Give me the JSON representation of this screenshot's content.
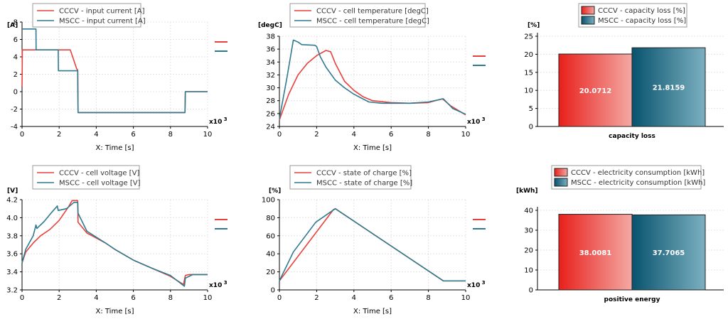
{
  "colors": {
    "cccv": "#e8403c",
    "mscc": "#2f7a8f"
  },
  "chart_data": [
    {
      "type": "line",
      "unit": "[A]",
      "xlabel": "X: Time [s]",
      "xscale": "x10 3",
      "xlim": [
        0,
        10
      ],
      "ylim": [
        -4,
        8
      ],
      "xticks": [
        "0",
        "2",
        "4",
        "6",
        "8",
        "10"
      ],
      "yticks": [
        "-4",
        "-2",
        "0",
        "2",
        "4",
        "6",
        "8"
      ],
      "series": [
        {
          "name": "CCCV - input current [A]",
          "color": "cccv",
          "points": [
            [
              0,
              0.6
            ],
            [
              0.02,
              4.8
            ],
            [
              2.6,
              4.8
            ],
            [
              2.95,
              2.6
            ],
            [
              3.0,
              2.5
            ],
            [
              3.02,
              -2.4
            ],
            [
              8.78,
              -2.4
            ],
            [
              8.8,
              0
            ],
            [
              10,
              0
            ]
          ]
        },
        {
          "name": "MSCC - input current [A]",
          "color": "mscc",
          "points": [
            [
              0,
              7.2
            ],
            [
              0.75,
              7.2
            ],
            [
              0.76,
              4.8
            ],
            [
              1.95,
              4.8
            ],
            [
              1.96,
              2.4
            ],
            [
              3.0,
              2.4
            ],
            [
              3.02,
              -2.4
            ],
            [
              8.78,
              -2.4
            ],
            [
              8.8,
              0
            ],
            [
              10,
              0
            ]
          ]
        }
      ]
    },
    {
      "type": "line",
      "unit": "[degC]",
      "xlabel": "X: Time [s]",
      "xscale": "x10 3",
      "xlim": [
        0,
        10
      ],
      "ylim": [
        24,
        38
      ],
      "xticks": [
        "0",
        "2",
        "4",
        "6",
        "8",
        "10"
      ],
      "yticks": [
        "24",
        "26",
        "28",
        "30",
        "32",
        "34",
        "36",
        "38"
      ],
      "series": [
        {
          "name": "CCCV - cell temperature [degC]",
          "color": "cccv",
          "points": [
            [
              0,
              25
            ],
            [
              0.5,
              29
            ],
            [
              1.0,
              32
            ],
            [
              1.5,
              33.8
            ],
            [
              2.0,
              35.0
            ],
            [
              2.5,
              35.8
            ],
            [
              2.75,
              35.6
            ],
            [
              3.0,
              33.8
            ],
            [
              3.5,
              31
            ],
            [
              4.0,
              29.6
            ],
            [
              4.5,
              28.6
            ],
            [
              5.0,
              28.0
            ],
            [
              6.0,
              27.7
            ],
            [
              7.0,
              27.6
            ],
            [
              8.0,
              27.7
            ],
            [
              8.75,
              28.3
            ],
            [
              9.2,
              27.2
            ],
            [
              10,
              25.8
            ]
          ]
        },
        {
          "name": "MSCC - cell temperature [degC]",
          "color": "mscc",
          "points": [
            [
              0,
              25.2
            ],
            [
              0.4,
              31.5
            ],
            [
              0.75,
              37.4
            ],
            [
              1.0,
              37.1
            ],
            [
              1.2,
              36.7
            ],
            [
              1.9,
              36.6
            ],
            [
              2.0,
              36.4
            ],
            [
              2.2,
              34.8
            ],
            [
              2.5,
              33.2
            ],
            [
              3.0,
              31.2
            ],
            [
              3.5,
              30.0
            ],
            [
              4.0,
              29.0
            ],
            [
              4.8,
              27.8
            ],
            [
              5.5,
              27.6
            ],
            [
              7.0,
              27.6
            ],
            [
              8.0,
              27.8
            ],
            [
              8.8,
              28.3
            ],
            [
              9.3,
              26.8
            ],
            [
              10,
              25.9
            ]
          ]
        }
      ]
    },
    {
      "type": "bar",
      "unit": "[%]",
      "ylim": [
        0,
        25
      ],
      "yticks": [
        "0",
        "5",
        "10",
        "15",
        "20",
        "25"
      ],
      "category": "capacity loss",
      "series": [
        {
          "name": "CCCV - capacity loss [%]",
          "color": "cccv",
          "value": 20.0712,
          "label": "20.0712"
        },
        {
          "name": "MSCC - capacity loss [%]",
          "color": "mscc",
          "value": 21.8159,
          "label": "21.8159"
        }
      ]
    },
    {
      "type": "line",
      "unit": "[V]",
      "xlabel": "X: Time [s]",
      "xscale": "x10 3",
      "xlim": [
        0,
        10
      ],
      "ylim": [
        3.2,
        4.2
      ],
      "xticks": [
        "0",
        "2",
        "4",
        "6",
        "8",
        "10"
      ],
      "yticks": [
        "3.2",
        "3.4",
        "3.6",
        "3.8",
        "4.0",
        "4.2"
      ],
      "series": [
        {
          "name": "CCCV - cell voltage [V]",
          "color": "cccv",
          "points": [
            [
              0,
              3.5
            ],
            [
              0.2,
              3.62
            ],
            [
              0.6,
              3.72
            ],
            [
              1.0,
              3.8
            ],
            [
              1.5,
              3.87
            ],
            [
              2.0,
              3.97
            ],
            [
              2.5,
              4.12
            ],
            [
              2.7,
              4.19
            ],
            [
              3.0,
              4.19
            ],
            [
              3.02,
              3.95
            ],
            [
              3.5,
              3.83
            ],
            [
              4.5,
              3.72
            ],
            [
              5.0,
              3.65
            ],
            [
              6.0,
              3.53
            ],
            [
              7.0,
              3.44
            ],
            [
              8.0,
              3.35
            ],
            [
              8.7,
              3.26
            ],
            [
              8.8,
              3.36
            ],
            [
              9.0,
              3.37
            ],
            [
              10,
              3.37
            ]
          ]
        },
        {
          "name": "MSCC - cell voltage [V]",
          "color": "mscc",
          "points": [
            [
              0,
              3.5
            ],
            [
              0.2,
              3.65
            ],
            [
              0.6,
              3.8
            ],
            [
              0.75,
              3.92
            ],
            [
              0.8,
              3.88
            ],
            [
              1.2,
              3.96
            ],
            [
              1.6,
              4.06
            ],
            [
              1.9,
              4.13
            ],
            [
              1.95,
              4.08
            ],
            [
              2.4,
              4.1
            ],
            [
              2.8,
              4.17
            ],
            [
              3.0,
              4.17
            ],
            [
              3.02,
              4.05
            ],
            [
              3.5,
              3.85
            ],
            [
              4.5,
              3.72
            ],
            [
              5.0,
              3.65
            ],
            [
              6.0,
              3.53
            ],
            [
              7.0,
              3.44
            ],
            [
              8.0,
              3.36
            ],
            [
              8.75,
              3.24
            ],
            [
              8.8,
              3.33
            ],
            [
              9.2,
              3.37
            ],
            [
              10,
              3.37
            ]
          ]
        }
      ]
    },
    {
      "type": "line",
      "unit": "[%]",
      "xlabel": "X: Time [s]",
      "xscale": "x10 3",
      "xlim": [
        0,
        10
      ],
      "ylim": [
        0,
        100
      ],
      "xticks": [
        "0",
        "2",
        "4",
        "6",
        "8",
        "10"
      ],
      "yticks": [
        "0",
        "20",
        "40",
        "60",
        "80",
        "100"
      ],
      "series": [
        {
          "name": "CCCV - state of charge [%]",
          "color": "cccv",
          "points": [
            [
              0,
              10
            ],
            [
              2.9,
              89
            ],
            [
              3.0,
              90
            ],
            [
              8.8,
              10
            ],
            [
              10,
              10
            ]
          ]
        },
        {
          "name": "MSCC - state of charge [%]",
          "color": "mscc",
          "points": [
            [
              0,
              10
            ],
            [
              0.75,
              42
            ],
            [
              1.95,
              75
            ],
            [
              3.0,
              90
            ],
            [
              8.8,
              10
            ],
            [
              10,
              10
            ]
          ]
        }
      ]
    },
    {
      "type": "bar",
      "unit": "[kWh]",
      "ylim": [
        0,
        40
      ],
      "yticks": [
        "0",
        "10",
        "20",
        "30",
        "40"
      ],
      "category": "positive energy",
      "series": [
        {
          "name": "CCCV - electricity consumption [kWh]",
          "color": "cccv",
          "value": 38.0081,
          "label": "38.0081"
        },
        {
          "name": "MSCC - electricity consumption [kWh]",
          "color": "mscc",
          "value": 37.7065,
          "label": "37.7065"
        }
      ]
    }
  ]
}
